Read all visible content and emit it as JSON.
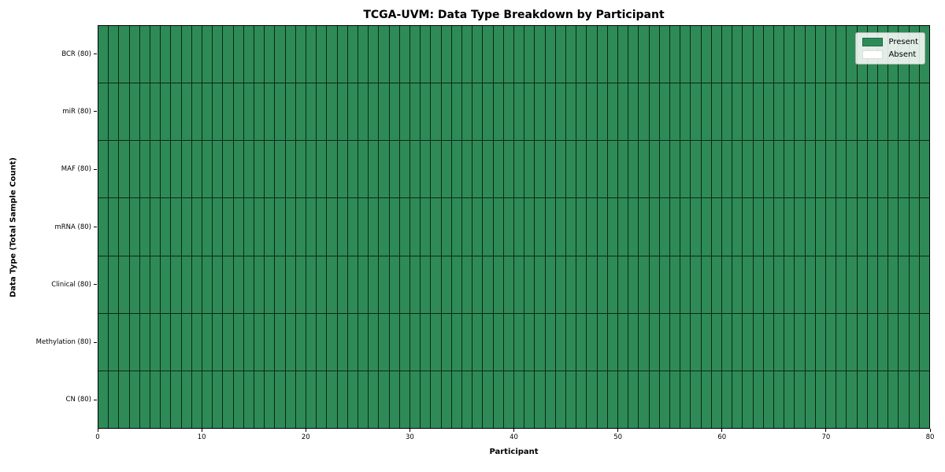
{
  "chart_data": {
    "type": "heatmap",
    "title": "TCGA-UVM: Data Type Breakdown by Participant",
    "xlabel": "Participant",
    "ylabel": "Data Type (Total Sample Count)",
    "x_range": [
      0,
      80
    ],
    "xticks": [
      0,
      10,
      20,
      30,
      40,
      50,
      60,
      70,
      80
    ],
    "n_participants": 80,
    "rows": [
      {
        "label": "BCR (80)",
        "total_samples": 80,
        "present": 80
      },
      {
        "label": "miR (80)",
        "total_samples": 80,
        "present": 80
      },
      {
        "label": "MAF (80)",
        "total_samples": 80,
        "present": 80
      },
      {
        "label": "mRNA (80)",
        "total_samples": 80,
        "present": 80
      },
      {
        "label": "Clinical (80)",
        "total_samples": 80,
        "present": 80
      },
      {
        "label": "Methylation (80)",
        "total_samples": 80,
        "present": 80
      },
      {
        "label": "CN (80)",
        "total_samples": 80,
        "present": 80
      }
    ],
    "legend": [
      {
        "label": "Present",
        "color": "#2e8b57"
      },
      {
        "label": "Absent",
        "color": "#ffffff"
      }
    ],
    "legend_position": "upper right",
    "grid": true,
    "colors": {
      "present": "#2e8b57",
      "absent": "#ffffff",
      "cell_border": "rgba(0,0,0,0.72)",
      "spine": "#000000",
      "background": "#ffffff"
    }
  }
}
